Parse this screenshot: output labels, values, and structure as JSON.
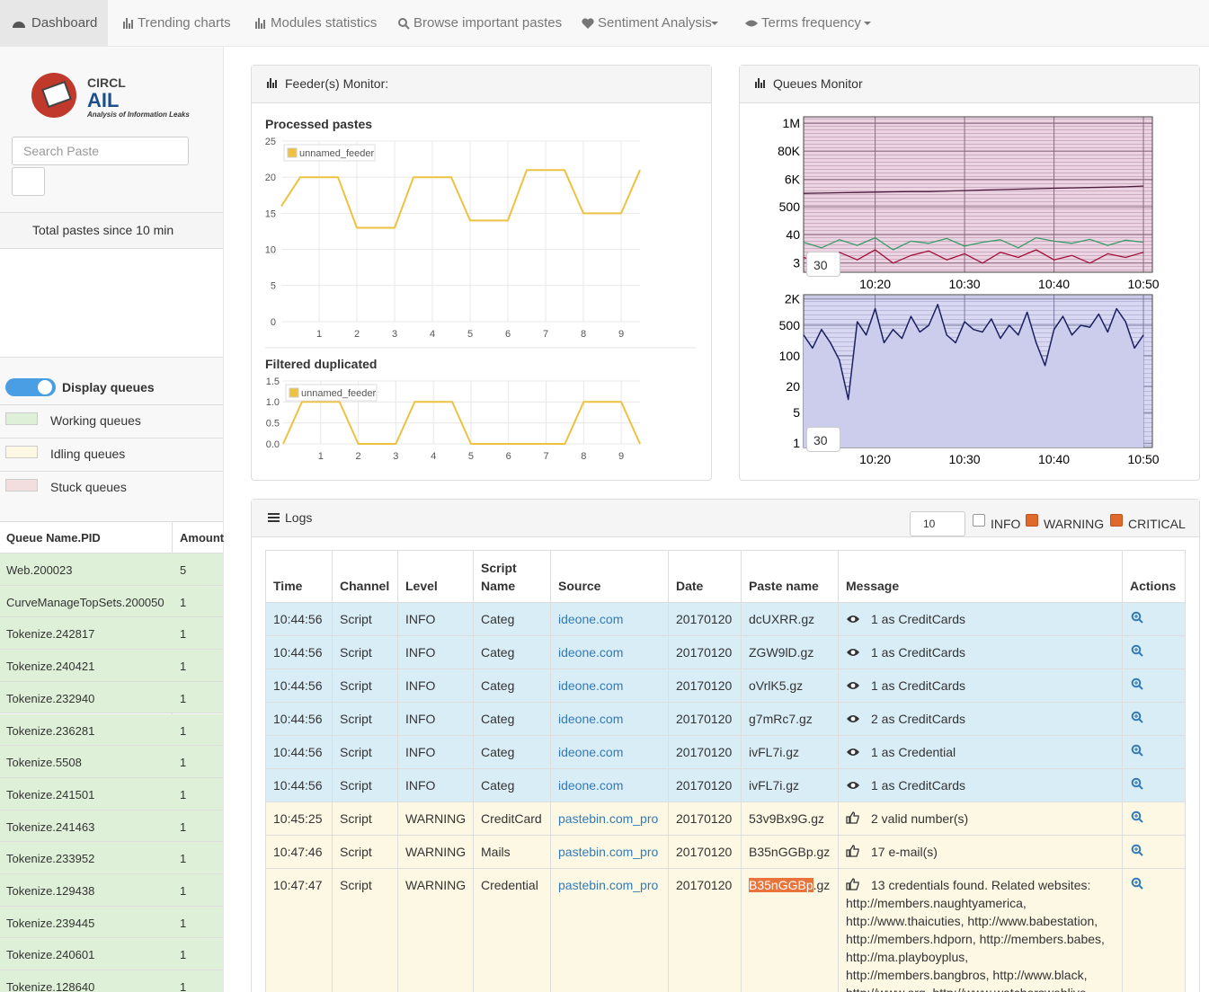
{
  "nav": {
    "items": [
      "Dashboard",
      "Trending charts",
      "Modules statistics",
      "Browse important pastes",
      "Sentiment Analysis",
      "Terms frequency"
    ]
  },
  "sidebar": {
    "logo": {
      "org": "CIRCL",
      "name": "AIL",
      "tagline": "Analysis of Information Leaks"
    },
    "search_placeholder": "Search Paste",
    "total_panel_title": "Total pastes since 10 min",
    "display_queues": {
      "label": "Display queues",
      "on": true
    },
    "legend": [
      {
        "label": "Working queues",
        "color": "#dff0d8"
      },
      {
        "label": "Idling queues",
        "color": "#fcf8e3"
      },
      {
        "label": "Stuck queues",
        "color": "#f2dede"
      }
    ],
    "queue_table": {
      "headers": [
        "Queue Name.PID",
        "Amount"
      ],
      "rows": [
        [
          "Web.200023",
          5
        ],
        [
          "CurveManageTopSets.200050",
          1
        ],
        [
          "Tokenize.242817",
          1
        ],
        [
          "Tokenize.240421",
          1
        ],
        [
          "Tokenize.232940",
          1
        ],
        [
          "Tokenize.236281",
          1
        ],
        [
          "Tokenize.5508",
          1
        ],
        [
          "Tokenize.241501",
          1
        ],
        [
          "Tokenize.241463",
          1
        ],
        [
          "Tokenize.233952",
          1
        ],
        [
          "Tokenize.129438",
          1
        ],
        [
          "Tokenize.239445",
          1
        ],
        [
          "Tokenize.240601",
          1
        ],
        [
          "Tokenize.128640",
          1
        ]
      ]
    }
  },
  "feeder_monitor": {
    "title": "Feeder(s) Monitor:"
  },
  "queues_monitor": {
    "title": "Queues Monitor"
  },
  "logs": {
    "title": "Logs",
    "page_size": 10,
    "filters": [
      {
        "label": "INFO",
        "checked": false
      },
      {
        "label": "WARNING",
        "checked": true
      },
      {
        "label": "CRITICAL",
        "checked": true
      }
    ],
    "headers": [
      "Time",
      "Channel",
      "Level",
      "Script Name",
      "Source",
      "Date",
      "Paste name",
      "Message",
      "Actions"
    ],
    "rows": [
      [
        "10:44:56",
        "Script",
        "INFO",
        "Categ",
        "ideone.com",
        "20170120",
        "dcUXRR.gz",
        "1 as CreditCards"
      ],
      [
        "10:44:56",
        "Script",
        "INFO",
        "Categ",
        "ideone.com",
        "20170120",
        "ZGW9lD.gz",
        "1 as CreditCards"
      ],
      [
        "10:44:56",
        "Script",
        "INFO",
        "Categ",
        "ideone.com",
        "20170120",
        "oVrlK5.gz",
        "1 as CreditCards"
      ],
      [
        "10:44:56",
        "Script",
        "INFO",
        "Categ",
        "ideone.com",
        "20170120",
        "g7mRc7.gz",
        "2 as CreditCards"
      ],
      [
        "10:44:56",
        "Script",
        "INFO",
        "Categ",
        "ideone.com",
        "20170120",
        "ivFL7i.gz",
        "1 as Credential"
      ],
      [
        "10:44:56",
        "Script",
        "INFO",
        "Categ",
        "ideone.com",
        "20170120",
        "ivFL7i.gz",
        "1 as CreditCards"
      ],
      [
        "10:45:25",
        "Script",
        "WARNING",
        "CreditCard",
        "pastebin.com_pro",
        "20170120",
        "53v9Bx9G.gz",
        "2 valid number(s)"
      ],
      [
        "10:47:46",
        "Script",
        "WARNING",
        "Mails",
        "pastebin.com_pro",
        "20170120",
        "B35nGGBp.gz",
        "17 e-mail(s)"
      ],
      [
        "10:47:47",
        "Script",
        "WARNING",
        "Credential",
        "pastebin.com_pro",
        "20170120",
        [
          "B35nGGBp",
          ".gz"
        ],
        "13 credentials found. Related websites: http://members.naughtyamerica, http://www.thaicuties, http://www.babestation, http://members.hdporn, http://members.babes, http://ma.playboyplus, http://members.bangbros, http://www.black, http://www.org, http://www.watchersweblive"
      ]
    ]
  },
  "chart_data": [
    {
      "type": "area",
      "x": [
        0,
        0.5,
        1.5,
        2,
        3,
        3.5,
        4.5,
        5,
        6,
        6.5,
        7.5,
        8,
        9,
        9.5
      ],
      "series": [
        {
          "color": "#edc240",
          "values": [
            16,
            20,
            20,
            13,
            13,
            20,
            20,
            14,
            14,
            21,
            21,
            15,
            15,
            21
          ]
        }
      ],
      "xlim": [
        0,
        9.5
      ],
      "ylim": [
        0,
        22
      ],
      "xticks": [
        1,
        2,
        3,
        4,
        5,
        6,
        7,
        8,
        9
      ],
      "yticks": [
        0,
        5,
        10,
        15,
        20
      ],
      "grid": false
    },
    {
      "type": "line",
      "title": "Processed pastes",
      "x": [
        0,
        0.5,
        1.5,
        2,
        3,
        3.5,
        4.5,
        5,
        6,
        6.5,
        7.5,
        8,
        9,
        9.5
      ],
      "series": [
        {
          "name": "unnamed_feeder",
          "color": "#edc240",
          "values": [
            16,
            20,
            20,
            13,
            13,
            20,
            20,
            14,
            14,
            21,
            21,
            15,
            15,
            21
          ]
        }
      ],
      "xlim": [
        0,
        9.5
      ],
      "ylim": [
        0,
        25
      ],
      "xticks": [
        1,
        2,
        3,
        4,
        5,
        6,
        7,
        8,
        9
      ],
      "yticks": [
        0,
        5,
        10,
        15,
        20,
        25
      ],
      "grid": true,
      "legend": "top-left"
    },
    {
      "type": "line",
      "title": "Filtered duplicated",
      "x": [
        0,
        0.5,
        1.5,
        2,
        3,
        3.5,
        4.5,
        5,
        6,
        6.5,
        7.5,
        8,
        9,
        9.5
      ],
      "series": [
        {
          "name": "unnamed_feeder",
          "color": "#edc240",
          "values": [
            0,
            1,
            1,
            0,
            0,
            1,
            1,
            0,
            0,
            0,
            0,
            1,
            1,
            0
          ]
        }
      ],
      "xlim": [
        0,
        9.5
      ],
      "ylim": [
        0,
        1.5
      ],
      "xticks": [
        1,
        2,
        3,
        4,
        5,
        6,
        7,
        8,
        9
      ],
      "yticks": [
        {
          "value": 0,
          "label": "0.0"
        },
        0.5,
        {
          "value": 1,
          "label": "1.0"
        },
        1.5
      ],
      "grid": true,
      "legend": "top-left"
    },
    {
      "type": "line",
      "log_scale": true,
      "roller": 30,
      "x": [
        "10:12",
        "10:14",
        "10:16",
        "10:18",
        "10:20",
        "10:22",
        "10:24",
        "10:26",
        "10:28",
        "10:30",
        "10:32",
        "10:34",
        "10:36",
        "10:38",
        "10:40",
        "10:42",
        "10:44",
        "10:46",
        "10:48",
        "10:50"
      ],
      "series": [
        {
          "color": "#4a1a3a",
          "values": [
            1700,
            1750,
            1800,
            1850,
            1900,
            1950,
            2000,
            2000,
            2100,
            2200,
            2300,
            2400,
            2500,
            2600,
            2700,
            2800,
            2900,
            3000,
            3100,
            3300
          ]
        },
        {
          "color": "#3a9a6a",
          "values": [
            20,
            12,
            25,
            15,
            30,
            10,
            22,
            18,
            28,
            14,
            20,
            25,
            12,
            30,
            22,
            18,
            26,
            15,
            24,
            20
          ]
        },
        {
          "color": "#a0103a",
          "values": [
            5,
            3,
            8,
            4,
            10,
            3,
            6,
            9,
            4,
            7,
            3,
            8,
            5,
            10,
            4,
            6,
            3,
            7,
            5,
            8
          ]
        }
      ],
      "xlim": [
        "10:12",
        "10:51"
      ],
      "ylim": [
        1.3,
        1800000
      ],
      "xticks": [
        "10:20",
        "10:30",
        "10:40",
        "10:50"
      ],
      "yticks": [
        {
          "value": 1000000,
          "label": "1M"
        },
        {
          "value": 80000,
          "label": "80K"
        },
        {
          "value": 6000,
          "label": "6K"
        },
        500,
        40,
        3
      ],
      "grid": true
    },
    {
      "type": "area",
      "log_scale": true,
      "roller": 30,
      "x": [
        "10:12",
        "10:13",
        "10:14",
        "10:15",
        "10:16",
        "10:17",
        "10:18",
        "10:19",
        "10:20",
        "10:21",
        "10:22",
        "10:23",
        "10:24",
        "10:25",
        "10:26",
        "10:27",
        "10:28",
        "10:29",
        "10:30",
        "10:31",
        "10:32",
        "10:33",
        "10:34",
        "10:35",
        "10:36",
        "10:37",
        "10:38",
        "10:39",
        "10:40",
        "10:41",
        "10:42",
        "10:43",
        "10:44",
        "10:45",
        "10:46",
        "10:47",
        "10:48",
        "10:49",
        "10:50"
      ],
      "series": [
        {
          "color": "#1a2060",
          "fill": "#ccccec",
          "values": [
            300,
            150,
            400,
            200,
            80,
            10,
            600,
            300,
            1200,
            200,
            400,
            250,
            800,
            350,
            500,
            1500,
            300,
            200,
            600,
            400,
            350,
            700,
            250,
            500,
            300,
            1000,
            200,
            60,
            400,
            800,
            300,
            500,
            450,
            900,
            350,
            1200,
            600,
            150,
            300
          ]
        }
      ],
      "xlim": [
        "10:12",
        "10:51"
      ],
      "ylim": [
        0.8,
        2500
      ],
      "xticks": [
        "10:20",
        "10:30",
        "10:40",
        "10:50"
      ],
      "yticks": [
        {
          "value": 2000,
          "label": "2K"
        },
        500,
        100,
        20,
        5,
        1
      ],
      "grid": true
    }
  ]
}
